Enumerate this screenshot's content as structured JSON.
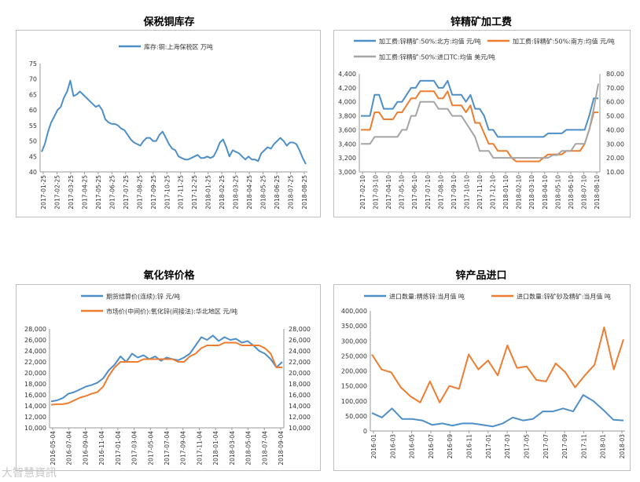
{
  "watermark": "大智慧資訊",
  "charts": [
    {
      "type": "line",
      "title": "保税铜库存",
      "colors": [
        "#4f8fc7"
      ],
      "legend": [
        "库存:铜:上海保税区  万吨"
      ],
      "y_ticks": [
        "75",
        "70",
        "65",
        "60",
        "55",
        "50",
        "45",
        "40"
      ],
      "ylim": [
        40,
        75
      ],
      "x_ticks": [
        "2017-01-25",
        "2017-02-25",
        "2017-03-25",
        "2017-04-25",
        "2017-05-25",
        "2017-06-25",
        "2017-07-25",
        "2017-08-25",
        "2017-09-25",
        "2017-10-25",
        "2017-11-25",
        "2017-12-25",
        "2018-01-25",
        "2018-02-25",
        "2018-03-25",
        "2018-04-25",
        "2018-05-25",
        "2018-06-25",
        "2018-07-25",
        "2018-08-25"
      ],
      "series": [
        {
          "values": [
            46.5,
            49,
            53,
            56,
            58,
            60,
            61,
            64,
            66,
            69.5,
            64.5,
            65,
            66,
            65,
            64,
            63,
            62,
            61,
            61.5,
            60,
            57,
            56,
            55.5,
            55.5,
            55,
            54,
            53.5,
            52,
            50.5,
            49.5,
            49,
            48.5,
            50,
            51,
            51,
            50,
            50,
            52,
            53,
            51,
            49,
            47.5,
            47,
            45,
            44.5,
            44,
            44,
            44.5,
            45,
            45.5,
            44.5,
            44.5,
            45,
            44.5,
            45,
            47,
            49.5,
            50.5,
            48,
            45,
            47,
            46.5,
            46,
            45,
            44,
            45,
            44,
            44,
            43.5,
            46,
            47,
            48,
            47.5,
            49,
            50,
            51,
            50,
            48.5,
            49.5,
            49.5,
            49,
            47,
            44.5,
            42.5
          ]
        }
      ]
    },
    {
      "type": "line",
      "title": "锌精矿加工费",
      "colors": [
        "#4f8fc7",
        "#ed7d31",
        "#a5a5a5"
      ],
      "legend": [
        "加工费:锌精矿:50%:北方:均值  元/吨",
        "加工费:锌精矿:50%:南方:均值  元/吨",
        "加工费:锌精矿:50%:进口TC:均值  美元/吨"
      ],
      "y_ticks": [
        "4,400",
        "4,200",
        "4,000",
        "3,800",
        "3,600",
        "3,400",
        "3,200",
        "3,000"
      ],
      "ylim": [
        3000,
        4400
      ],
      "y2_ticks": [
        "80.00",
        "70.00",
        "60.00",
        "50.00",
        "40.00",
        "30.00",
        "20.00",
        "10.00"
      ],
      "y2lim": [
        10,
        80
      ],
      "x_ticks": [
        "2017-02-10",
        "2017-03-10",
        "2017-04-10",
        "2017-05-10",
        "2017-06-10",
        "2017-07-10",
        "2017-08-10",
        "2017-09-10",
        "2017-10-10",
        "2017-11-10",
        "2017-12-10",
        "2018-01-10",
        "2018-02-10",
        "2018-03-10",
        "2018-04-10",
        "2018-05-10",
        "2018-06-10",
        "2018-07-10",
        "2018-08-10"
      ],
      "series": [
        {
          "values": [
            3800,
            3800,
            3800,
            4100,
            4100,
            3900,
            3900,
            3900,
            4000,
            4000,
            4100,
            4200,
            4200,
            4300,
            4300,
            4300,
            4300,
            4200,
            4200,
            4300,
            4100,
            4100,
            4100,
            4000,
            4100,
            3900,
            3900,
            3800,
            3600,
            3600,
            3500,
            3500,
            3500,
            3500,
            3500,
            3500,
            3500,
            3500,
            3500,
            3500,
            3500,
            3550,
            3550,
            3550,
            3550,
            3600,
            3600,
            3600,
            3600,
            3600,
            3800,
            4050,
            4050
          ]
        },
        {
          "values": [
            3600,
            3600,
            3600,
            3850,
            3850,
            3750,
            3750,
            3750,
            3850,
            3850,
            3950,
            4050,
            4050,
            4150,
            4150,
            4150,
            4150,
            4050,
            4050,
            4150,
            3950,
            3950,
            3950,
            3850,
            3950,
            3700,
            3700,
            3550,
            3400,
            3400,
            3300,
            3300,
            3300,
            3200,
            3150,
            3150,
            3150,
            3150,
            3150,
            3150,
            3200,
            3250,
            3250,
            3250,
            3250,
            3300,
            3300,
            3300,
            3300,
            3400,
            3600,
            3850,
            3850
          ]
        },
        {
          "values": [
            30,
            30,
            30,
            35,
            35,
            35,
            35,
            35,
            35,
            40,
            40,
            50,
            50,
            60,
            60,
            60,
            60,
            55,
            55,
            55,
            50,
            50,
            50,
            45,
            40,
            35,
            25,
            25,
            25,
            20,
            20,
            20,
            20,
            20,
            20,
            20,
            20,
            20,
            20,
            20,
            20,
            20,
            22,
            22,
            25,
            25,
            25,
            30,
            30,
            30,
            40,
            55,
            73
          ]
        }
      ]
    },
    {
      "type": "line",
      "title": "氧化锌价格",
      "colors": [
        "#4f8fc7",
        "#ed7d31"
      ],
      "legend": [
        "期货结算价(连续):锌  元/吨",
        "市场价(中间价):氧化锌(间接法):华北地区  元/吨"
      ],
      "y_ticks": [
        "28,000",
        "26,000",
        "24,000",
        "22,000",
        "20,000",
        "18,000",
        "16,000",
        "14,000",
        "12,000",
        "10,000"
      ],
      "ylim": [
        10000,
        28000
      ],
      "y2_ticks": [
        "28,000",
        "26,000",
        "24,000",
        "22,000",
        "20,000",
        "18,000",
        "16,000",
        "14,000",
        "12,000",
        "10,000"
      ],
      "y2lim": [
        10000,
        28000
      ],
      "x_ticks": [
        "2016-05-04",
        "2016-07-04",
        "2016-09-04",
        "2016-11-04",
        "2017-01-04",
        "2017-03-04",
        "2017-05-04",
        "2017-07-04",
        "2017-09-04",
        "2017-11-04",
        "2018-01-04",
        "2018-03-04",
        "2018-05-04",
        "2018-07-04",
        "2018-09-04"
      ],
      "series": [
        {
          "values": [
            14800,
            15000,
            15400,
            16200,
            16500,
            17000,
            17500,
            17800,
            18200,
            19000,
            20500,
            21500,
            23000,
            22000,
            23500,
            22800,
            23200,
            22500,
            23000,
            22200,
            22800,
            22500,
            22300,
            22800,
            23500,
            25000,
            26500,
            26000,
            26800,
            25800,
            26500,
            26000,
            26200,
            25500,
            25800,
            25000,
            24000,
            23500,
            22500,
            21000,
            22000
          ]
        },
        {
          "values": [
            14200,
            14300,
            14300,
            14500,
            15000,
            15500,
            15800,
            16200,
            16500,
            17500,
            19500,
            21000,
            22000,
            22000,
            22000,
            22000,
            22500,
            22500,
            22500,
            22500,
            22500,
            22500,
            22000,
            22000,
            23000,
            23500,
            24500,
            25000,
            25000,
            25000,
            25500,
            25500,
            25500,
            25000,
            25000,
            25000,
            25000,
            24500,
            23500,
            21000,
            21000
          ]
        }
      ]
    },
    {
      "type": "line",
      "title": "锌产品进口",
      "colors": [
        "#4f8fc7",
        "#ed7d31"
      ],
      "legend": [
        "进口数量:精炼锌:当月值  吨",
        "进口数量:锌矿砂及精矿:当月值  吨"
      ],
      "y_ticks": [
        "400,000",
        "350,000",
        "300,000",
        "250,000",
        "200,000",
        "150,000",
        "100,000",
        "50,000",
        "0"
      ],
      "ylim": [
        0,
        400000
      ],
      "x_ticks": [
        "2016-01",
        "2016-03",
        "2016-05",
        "2016-07",
        "2016-09",
        "2016-11",
        "2017-01",
        "2017-03",
        "2017-05",
        "2017-07",
        "2017-09",
        "2017-11",
        "2018-01",
        "2018-03"
      ],
      "series": [
        {
          "values": [
            60000,
            45000,
            75000,
            40000,
            40000,
            35000,
            20000,
            25000,
            18000,
            25000,
            25000,
            20000,
            15000,
            25000,
            45000,
            35000,
            40000,
            65000,
            65000,
            75000,
            65000,
            120000,
            100000,
            70000,
            37000,
            35000
          ]
        },
        {
          "values": [
            255000,
            205000,
            195000,
            145000,
            115000,
            95000,
            165000,
            95000,
            150000,
            140000,
            255000,
            205000,
            235000,
            185000,
            285000,
            210000,
            215000,
            170000,
            165000,
            225000,
            195000,
            145000,
            185000,
            220000,
            345000,
            205000,
            305000
          ]
        }
      ]
    }
  ]
}
